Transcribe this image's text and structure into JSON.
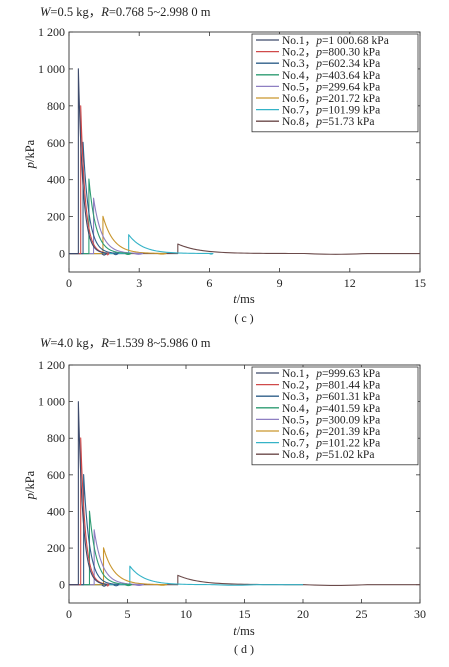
{
  "panels": [
    {
      "header": {
        "w_sym": "W",
        "w_val": "=0.5 kg，",
        "r_sym": "R",
        "r_val": "=0.768 5~2.998 0 m"
      },
      "caption": "( c )",
      "ylabel": {
        "sym": "p",
        "unit": "/kPa"
      },
      "xlabel": {
        "sym": "t",
        "unit": "/ms"
      },
      "legend": [
        {
          "name": "No.1，",
          "p_sym": "p",
          "p_val": "=1 000.68 kPa"
        },
        {
          "name": "No.2，",
          "p_sym": "p",
          "p_val": "=800.30 kPa"
        },
        {
          "name": "No.3，",
          "p_sym": "p",
          "p_val": "=602.34 kPa"
        },
        {
          "name": "No.4，",
          "p_sym": "p",
          "p_val": "=403.64 kPa"
        },
        {
          "name": "No.5，",
          "p_sym": "p",
          "p_val": "=299.64 kPa"
        },
        {
          "name": "No.6，",
          "p_sym": "p",
          "p_val": "=201.72 kPa"
        },
        {
          "name": "No.7，",
          "p_sym": "p",
          "p_val": "=101.99 kPa"
        },
        {
          "name": "No.8，",
          "p_sym": "p",
          "p_val": "=51.73 kPa"
        }
      ]
    },
    {
      "header": {
        "w_sym": "W",
        "w_val": "=4.0 kg，",
        "r_sym": "R",
        "r_val": "=1.539 8~5.986 0 m"
      },
      "caption": "( d )",
      "ylabel": {
        "sym": "p",
        "unit": "/kPa"
      },
      "xlabel": {
        "sym": "t",
        "unit": "/ms"
      },
      "legend": [
        {
          "name": "No.1，",
          "p_sym": "p",
          "p_val": "=999.63 kPa"
        },
        {
          "name": "No.2，",
          "p_sym": "p",
          "p_val": "=801.44 kPa"
        },
        {
          "name": "No.3，",
          "p_sym": "p",
          "p_val": "=601.31 kPa"
        },
        {
          "name": "No.4，",
          "p_sym": "p",
          "p_val": "=401.59 kPa"
        },
        {
          "name": "No.5，",
          "p_sym": "p",
          "p_val": "=300.09 kPa"
        },
        {
          "name": "No.6，",
          "p_sym": "p",
          "p_val": "=201.39 kPa"
        },
        {
          "name": "No.7，",
          "p_sym": "p",
          "p_val": "=101.22 kPa"
        },
        {
          "name": "No.8，",
          "p_sym": "p",
          "p_val": "=51.02 kPa"
        }
      ]
    }
  ],
  "chart_data": [
    {
      "type": "line",
      "title": "W=0.5 kg，R=0.768 5~2.998 0 m",
      "xlabel": "t/ms",
      "ylabel": "p/kPa",
      "xlim": [
        0,
        15
      ],
      "ylim": [
        -100,
        1200
      ],
      "xticks": [
        0,
        3,
        6,
        9,
        12,
        15
      ],
      "yticks": [
        0,
        200,
        400,
        600,
        800,
        1000,
        1200
      ],
      "ytick_labels": [
        "0",
        "200",
        "400",
        "600",
        "800",
        "1 000",
        "1 200"
      ],
      "legend_position": "top-right",
      "grid": false,
      "series": [
        {
          "name": "No.1，p=1 000.68 kPa",
          "color": "#3d4a6b",
          "arrival": 0.4,
          "peak": 1000.68,
          "decay": 0.2,
          "undershoot": 8,
          "end": 1.4
        },
        {
          "name": "No.2，p=800.30 kPa",
          "color": "#d04a4a",
          "arrival": 0.5,
          "peak": 800.3,
          "decay": 0.2,
          "undershoot": 7,
          "end": 1.6
        },
        {
          "name": "No.3，p=602.34 kPa",
          "color": "#2f5f8a",
          "arrival": 0.6,
          "peak": 602.34,
          "decay": 0.25,
          "undershoot": 6,
          "end": 1.9
        },
        {
          "name": "No.4，p=403.64 kPa",
          "color": "#2e9c72",
          "arrival": 0.85,
          "peak": 403.64,
          "decay": 0.3,
          "undershoot": 5,
          "end": 2.4
        },
        {
          "name": "No.5，p=299.64 kPa",
          "color": "#8e7fc2",
          "arrival": 1.05,
          "peak": 299.64,
          "decay": 0.35,
          "undershoot": 4,
          "end": 2.8
        },
        {
          "name": "No.6，p=201.72 kPa",
          "color": "#c9962e",
          "arrival": 1.45,
          "peak": 201.72,
          "decay": 0.45,
          "undershoot": 3,
          "end": 3.8
        },
        {
          "name": "No.7，p=101.99 kPa",
          "color": "#35b3c7",
          "arrival": 2.55,
          "peak": 101.99,
          "decay": 0.6,
          "undershoot": 3,
          "end": 6.0
        },
        {
          "name": "No.8，p=51.73 kPa",
          "color": "#6b4a4a",
          "arrival": 4.65,
          "peak": 51.73,
          "decay": 0.9,
          "undershoot": 4,
          "end": 15.0
        }
      ]
    },
    {
      "type": "line",
      "title": "W=4.0 kg，R=1.539 8~5.986 0 m",
      "xlabel": "t/ms",
      "ylabel": "p/kPa",
      "xlim": [
        0,
        30
      ],
      "ylim": [
        -100,
        1200
      ],
      "xticks": [
        0,
        5,
        10,
        15,
        20,
        25,
        30
      ],
      "yticks": [
        0,
        200,
        400,
        600,
        800,
        1000,
        1200
      ],
      "ytick_labels": [
        "0",
        "200",
        "400",
        "600",
        "800",
        "1 000",
        "1 200"
      ],
      "legend_position": "top-right",
      "grid": false,
      "series": [
        {
          "name": "No.1，p=999.63 kPa",
          "color": "#3d4a6b",
          "arrival": 0.8,
          "peak": 999.63,
          "decay": 0.4,
          "undershoot": 8,
          "end": 2.8
        },
        {
          "name": "No.2，p=801.44 kPa",
          "color": "#d04a4a",
          "arrival": 1.0,
          "peak": 801.44,
          "decay": 0.4,
          "undershoot": 7,
          "end": 3.2
        },
        {
          "name": "No.3，p=601.31 kPa",
          "color": "#2f5f8a",
          "arrival": 1.25,
          "peak": 601.31,
          "decay": 0.5,
          "undershoot": 6,
          "end": 3.8
        },
        {
          "name": "No.4，p=401.59 kPa",
          "color": "#2e9c72",
          "arrival": 1.75,
          "peak": 401.59,
          "decay": 0.6,
          "undershoot": 5,
          "end": 4.8
        },
        {
          "name": "No.5，p=300.09 kPa",
          "color": "#8e7fc2",
          "arrival": 2.15,
          "peak": 300.09,
          "decay": 0.7,
          "undershoot": 4,
          "end": 5.6
        },
        {
          "name": "No.6，p=201.39 kPa",
          "color": "#c9962e",
          "arrival": 2.95,
          "peak": 201.39,
          "decay": 0.9,
          "undershoot": 3,
          "end": 7.6
        },
        {
          "name": "No.7，p=101.22 kPa",
          "color": "#35b3c7",
          "arrival": 5.2,
          "peak": 101.22,
          "decay": 1.2,
          "undershoot": 3,
          "end": 20.0
        },
        {
          "name": "No.8，p=51.02 kPa",
          "color": "#6b4a4a",
          "arrival": 9.3,
          "peak": 51.02,
          "decay": 1.8,
          "undershoot": 4,
          "end": 30.0
        }
      ]
    }
  ]
}
